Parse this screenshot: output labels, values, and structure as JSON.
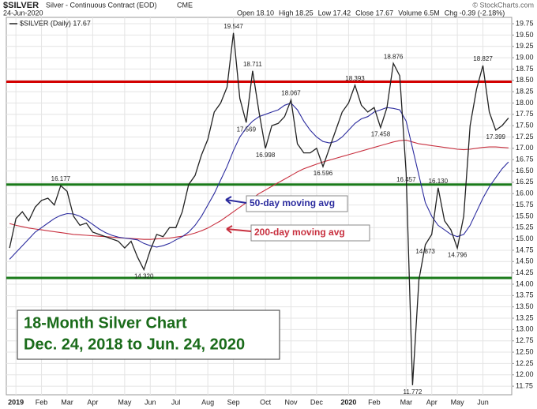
{
  "header": {
    "symbol": "$SILVER",
    "description": "Silver - Continuous Contract (EOD)",
    "exchange": "CME",
    "date": "24-Jun-2020",
    "quote": [
      "Open 18.10",
      "High 18.25",
      "Low 17.42",
      "Close 17.67",
      "Volume 6.5M",
      "Chg -0.39 (-2.18%)"
    ],
    "credit": "© StockCharts.com"
  },
  "chart_data": {
    "type": "line",
    "title": [
      "18-Month Silver Chart",
      "Dec. 24, 2018 to Jun. 24, 2020"
    ],
    "annotations": [
      "50-day moving avg",
      "200-day moving avg"
    ],
    "categories": [
      null,
      "2019",
      null,
      null,
      null,
      "Feb",
      null,
      null,
      null,
      "Mar",
      null,
      null,
      null,
      "Apr",
      null,
      null,
      null,
      null,
      "May",
      null,
      null,
      null,
      "Jun",
      null,
      null,
      null,
      "Jul",
      null,
      null,
      null,
      null,
      "Aug",
      null,
      null,
      null,
      "Sep",
      null,
      null,
      null,
      null,
      "Oct",
      null,
      null,
      null,
      "Nov",
      null,
      null,
      null,
      "Dec",
      null,
      null,
      null,
      null,
      "2020",
      null,
      null,
      null,
      "Feb",
      null,
      null,
      null,
      null,
      "Mar",
      null,
      null,
      null,
      "Apr",
      null,
      null,
      null,
      "May",
      null,
      null,
      null,
      "Jun",
      null,
      null,
      null,
      null
    ],
    "series": [
      {
        "name": "$SILVER (Daily) 17.67",
        "color": "#222222",
        "values": [
          14.8,
          15.45,
          15.6,
          15.4,
          15.7,
          15.85,
          15.9,
          15.75,
          16.177,
          16.05,
          15.5,
          15.3,
          15.35,
          15.15,
          15.1,
          15.05,
          15.0,
          14.95,
          14.8,
          14.95,
          14.6,
          14.32,
          14.75,
          15.1,
          15.05,
          15.25,
          15.25,
          15.6,
          16.2,
          16.4,
          16.85,
          17.2,
          17.8,
          18.0,
          18.35,
          19.547,
          18.1,
          17.569,
          18.711,
          17.8,
          16.998,
          17.5,
          17.55,
          17.7,
          18.067,
          17.1,
          16.9,
          16.9,
          17.0,
          16.596,
          17.0,
          17.4,
          17.8,
          18.0,
          18.393,
          17.95,
          17.8,
          17.9,
          17.458,
          17.9,
          18.876,
          18.6,
          16.457,
          11.772,
          14.1,
          14.873,
          15.1,
          16.13,
          15.4,
          15.2,
          14.796,
          15.5,
          17.5,
          18.3,
          18.827,
          17.8,
          17.399,
          17.5,
          17.67
        ],
        "value_labels": [
          null,
          null,
          null,
          null,
          null,
          null,
          null,
          null,
          "16.177",
          null,
          null,
          null,
          null,
          null,
          null,
          null,
          null,
          null,
          null,
          null,
          null,
          "14.320",
          null,
          null,
          null,
          null,
          null,
          null,
          null,
          null,
          null,
          null,
          null,
          null,
          null,
          "19.547",
          null,
          "17.569",
          "18.711",
          null,
          "16.998",
          null,
          null,
          null,
          "18.067",
          null,
          null,
          null,
          null,
          "16.596",
          null,
          null,
          null,
          null,
          "18.393",
          null,
          null,
          null,
          "17.458",
          null,
          "18.876",
          null,
          "16.457",
          "11.772",
          null,
          "14.873",
          null,
          "16.130",
          null,
          null,
          "14.796",
          null,
          null,
          null,
          "18.827",
          null,
          "17.399",
          null,
          null
        ]
      },
      {
        "color": "#2b2b9e",
        "values": [
          14.55,
          14.7,
          14.85,
          15.0,
          15.15,
          15.25,
          15.35,
          15.45,
          15.52,
          15.56,
          15.55,
          15.5,
          15.42,
          15.32,
          15.22,
          15.14,
          15.08,
          15.04,
          15.02,
          15.0,
          14.98,
          14.9,
          14.85,
          14.82,
          14.85,
          14.9,
          14.98,
          15.05,
          15.15,
          15.3,
          15.5,
          15.75,
          16.0,
          16.3,
          16.6,
          16.95,
          17.25,
          17.45,
          17.6,
          17.7,
          17.75,
          17.8,
          17.85,
          17.95,
          18.0,
          17.85,
          17.6,
          17.4,
          17.25,
          17.15,
          17.12,
          17.15,
          17.25,
          17.4,
          17.55,
          17.65,
          17.7,
          17.8,
          17.85,
          17.9,
          17.88,
          17.85,
          17.6,
          17.0,
          16.4,
          15.8,
          15.5,
          15.3,
          15.2,
          15.1,
          15.05,
          15.1,
          15.3,
          15.6,
          15.9,
          16.15,
          16.35,
          16.55,
          16.7
        ]
      },
      {
        "color": "#c8303f",
        "values": [
          15.34,
          15.3,
          15.27,
          15.24,
          15.22,
          15.2,
          15.18,
          15.16,
          15.14,
          15.12,
          15.1,
          15.09,
          15.08,
          15.07,
          15.06,
          15.05,
          15.04,
          15.03,
          15.02,
          15.01,
          15.0,
          14.99,
          14.99,
          15.0,
          15.01,
          15.02,
          15.04,
          15.06,
          15.09,
          15.13,
          15.18,
          15.24,
          15.32,
          15.4,
          15.5,
          15.6,
          15.7,
          15.8,
          15.9,
          16.0,
          16.08,
          16.16,
          16.24,
          16.32,
          16.4,
          16.48,
          16.55,
          16.6,
          16.65,
          16.7,
          16.74,
          16.78,
          16.82,
          16.86,
          16.9,
          16.94,
          16.98,
          17.02,
          17.06,
          17.1,
          17.14,
          17.17,
          17.18,
          17.14,
          17.1,
          17.08,
          17.06,
          17.04,
          17.02,
          17.0,
          16.98,
          16.97,
          16.98,
          17.0,
          17.02,
          17.03,
          17.03,
          17.02,
          17.01
        ]
      }
    ],
    "hlines": [
      {
        "value": 18.47,
        "color": "#d40000"
      },
      {
        "value": 16.2,
        "color": "#1a7a1a"
      },
      {
        "value": 14.14,
        "color": "#1a7a1a"
      }
    ],
    "ylim": [
      11.56,
      19.89
    ],
    "yticks": [
      11.75,
      {
        "value": 12,
        "label": "12.00"
      },
      12.25,
      {
        "value": 12.5,
        "label": "12.50"
      },
      12.75,
      {
        "value": 13,
        "label": "13.00"
      },
      13.25,
      {
        "value": 13.5,
        "label": "13.50"
      },
      13.75,
      {
        "value": 14,
        "label": "14.00"
      },
      14.25,
      {
        "value": 14.5,
        "label": "14.50"
      },
      14.75,
      {
        "value": 15,
        "label": "15.00"
      },
      15.25,
      {
        "value": 15.5,
        "label": "15.50"
      },
      15.75,
      {
        "value": 16,
        "label": "16.00"
      },
      16.25,
      {
        "value": 16.5,
        "label": "16.50"
      },
      16.75,
      {
        "value": 17,
        "label": "17.00"
      },
      17.25,
      {
        "value": 17.5,
        "label": "17.50"
      },
      17.75,
      {
        "value": 18,
        "label": "18.00"
      },
      18.25,
      {
        "value": 18.5,
        "label": "18.50"
      },
      18.75,
      {
        "value": 19,
        "label": "19.00"
      },
      19.25,
      {
        "value": 19.5,
        "label": "19.50"
      },
      19.75
    ],
    "grid": true
  }
}
